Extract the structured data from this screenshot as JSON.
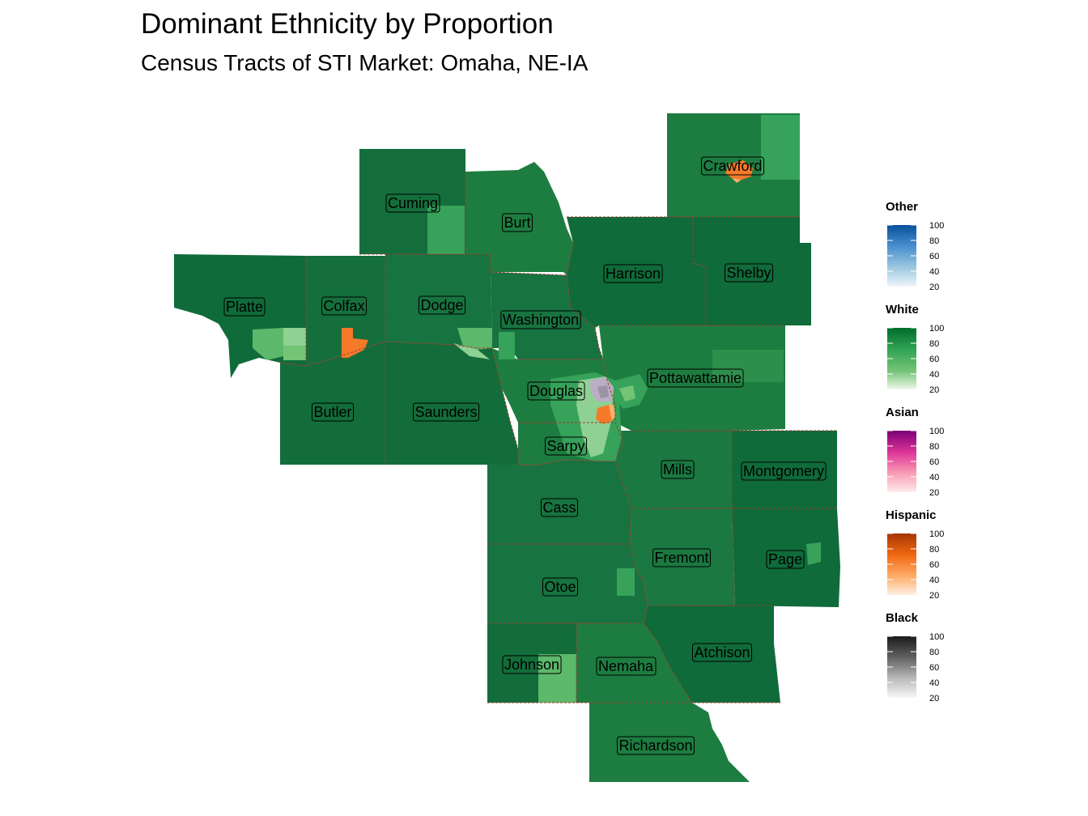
{
  "title": "Dominant Ethnicity by Proportion",
  "subtitle": "Census Tracts of STI Market: Omaha, NE-IA",
  "counties": [
    {
      "id": "cuming",
      "name": "Cuming"
    },
    {
      "id": "burt",
      "name": "Burt"
    },
    {
      "id": "crawford",
      "name": "Crawford"
    },
    {
      "id": "platte",
      "name": "Platte"
    },
    {
      "id": "colfax",
      "name": "Colfax"
    },
    {
      "id": "dodge",
      "name": "Dodge"
    },
    {
      "id": "washington",
      "name": "Washington"
    },
    {
      "id": "harrison",
      "name": "Harrison"
    },
    {
      "id": "shelby",
      "name": "Shelby"
    },
    {
      "id": "butler",
      "name": "Butler"
    },
    {
      "id": "saunders",
      "name": "Saunders"
    },
    {
      "id": "douglas",
      "name": "Douglas"
    },
    {
      "id": "pottawattamie",
      "name": "Pottawattamie"
    },
    {
      "id": "sarpy",
      "name": "Sarpy"
    },
    {
      "id": "mills",
      "name": "Mills"
    },
    {
      "id": "montgomery",
      "name": "Montgomery"
    },
    {
      "id": "cass",
      "name": "Cass"
    },
    {
      "id": "fremont",
      "name": "Fremont"
    },
    {
      "id": "page",
      "name": "Page"
    },
    {
      "id": "otoe",
      "name": "Otoe"
    },
    {
      "id": "johnson",
      "name": "Johnson"
    },
    {
      "id": "nemaha",
      "name": "Nemaha"
    },
    {
      "id": "atchison",
      "name": "Atchison"
    },
    {
      "id": "richardson",
      "name": "Richardson"
    }
  ],
  "legends": [
    {
      "id": "other",
      "title": "Other",
      "ticks": [
        "100",
        "80",
        "60",
        "40",
        "20"
      ],
      "colors": [
        "#08519c",
        "#4a90cf",
        "#9ecae1",
        "#deebf7"
      ]
    },
    {
      "id": "white",
      "title": "White",
      "ticks": [
        "100",
        "80",
        "60",
        "40",
        "20"
      ],
      "colors": [
        "#006d2c",
        "#31a354",
        "#74c476",
        "#e5f5e0"
      ]
    },
    {
      "id": "asian",
      "title": "Asian",
      "ticks": [
        "100",
        "80",
        "60",
        "40",
        "20"
      ],
      "colors": [
        "#7a0177",
        "#dd3497",
        "#fa9fb5",
        "#fde0dd"
      ]
    },
    {
      "id": "hispanic",
      "title": "Hispanic",
      "ticks": [
        "100",
        "80",
        "60",
        "40",
        "20"
      ],
      "colors": [
        "#a63603",
        "#f16913",
        "#fdae6b",
        "#feedde"
      ]
    },
    {
      "id": "black",
      "title": "Black",
      "ticks": [
        "100",
        "80",
        "60",
        "40",
        "20"
      ],
      "colors": [
        "#1a1a1a",
        "#636363",
        "#bdbdbd",
        "#f7f7f7"
      ]
    }
  ],
  "colors": {
    "white_dark": "#0f6b3a",
    "white_mid": "#1d7d40",
    "white_light": "#36a25a",
    "white_pale": "#8fd193",
    "hispanic": "#f47a2a",
    "black_tint": "#b9aec4",
    "border": "#a33a2c"
  }
}
